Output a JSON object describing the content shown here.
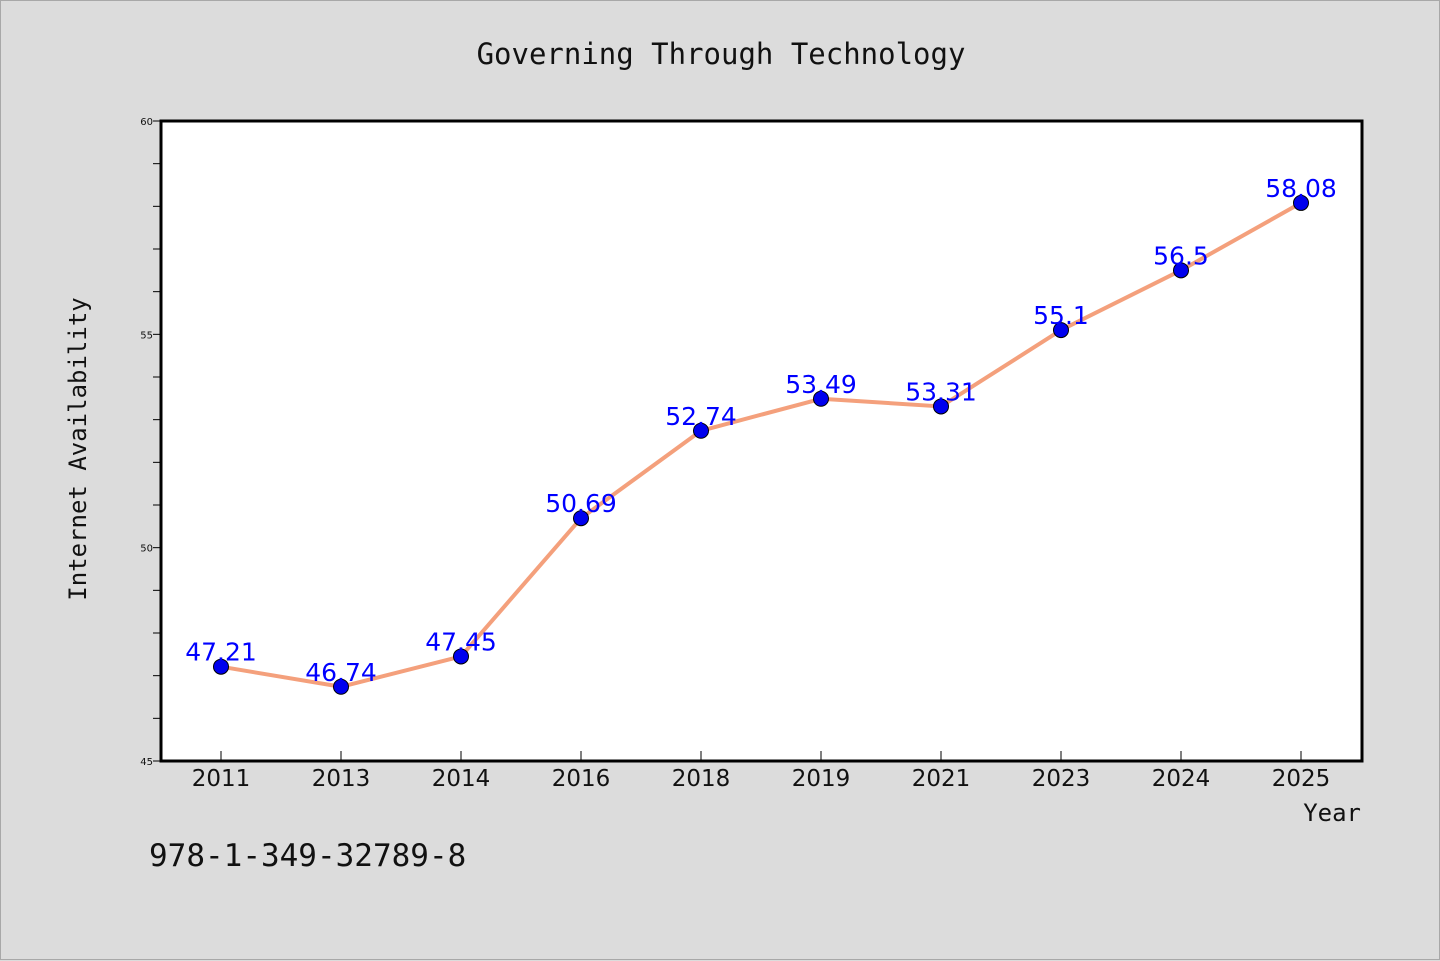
{
  "chart_data": {
    "type": "line",
    "title": "Governing Through Technology",
    "xlabel": "Year",
    "ylabel": "Internet Availability",
    "categories": [
      "2011",
      "2013",
      "2014",
      "2016",
      "2018",
      "2019",
      "2021",
      "2023",
      "2024",
      "2025"
    ],
    "series": [
      {
        "values": [
          47.21,
          46.74,
          47.45,
          50.69,
          52.74,
          53.49,
          53.31,
          55.1,
          56.5,
          58.08
        ],
        "data_labels": [
          "47.21",
          "46.74",
          "47.45",
          "50.69",
          "52.74",
          "53.49",
          "53.31",
          "55.1",
          "56.5",
          "58.08"
        ],
        "line_color": "#f4a07c",
        "marker_color": "#0000ee"
      }
    ],
    "yticks": [
      "45",
      "50",
      "55",
      "60"
    ],
    "ylim": [
      45,
      60
    ],
    "grid": false,
    "legend": "none"
  },
  "annotation": "978-1-349-32789-8",
  "colors": {
    "background": "#dcdcdc",
    "plot_area": "#ffffff",
    "line": "#f4a07c",
    "marker": "#0000ee",
    "data_label": "#0000ff"
  }
}
